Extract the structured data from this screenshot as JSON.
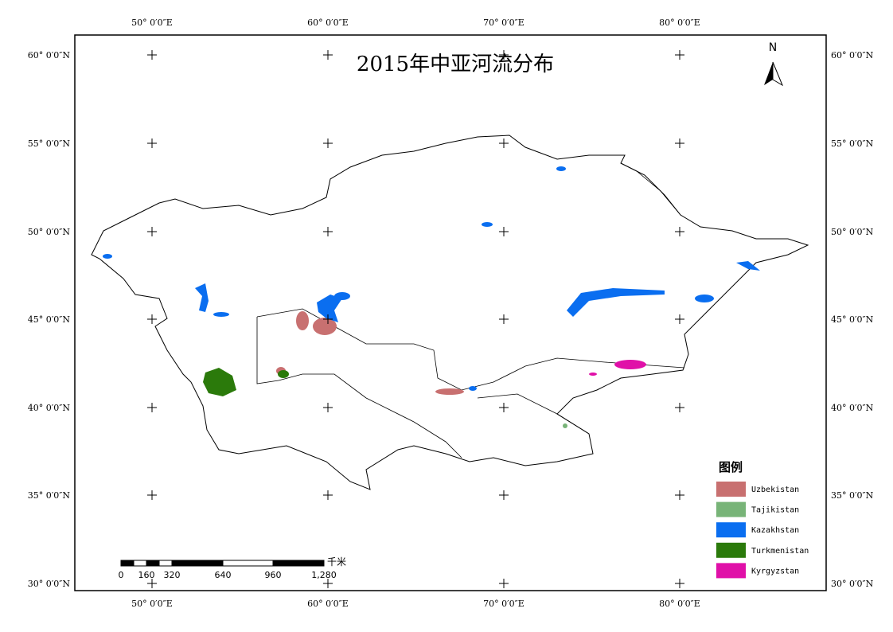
{
  "title": "2015年中亚河流分布",
  "north": "N",
  "graticule": {
    "top": [
      "50° 0′0″E",
      "60° 0′0″E",
      "70° 0′0″E",
      "80° 0′0″E"
    ],
    "bottom": [
      "50° 0′0″E",
      "60° 0′0″E",
      "70° 0′0″E",
      "80° 0′0″E"
    ],
    "left": [
      "60° 0′0″N",
      "55° 0′0″N",
      "50° 0′0″N",
      "45° 0′0″N",
      "40° 0′0″N",
      "35° 0′0″N",
      "30° 0′0″N"
    ],
    "right": [
      "60° 0′0″N",
      "55° 0′0″N",
      "50° 0′0″N",
      "45° 0′0″N",
      "40° 0′0″N",
      "35° 0′0″N",
      "30° 0′0″N"
    ]
  },
  "legend": {
    "title": "图例",
    "items": [
      {
        "name": "Uzbekistan",
        "color": "#c87070"
      },
      {
        "name": "Tajikistan",
        "color": "#78b478"
      },
      {
        "name": "Kazakhstan",
        "color": "#0a6ef0"
      },
      {
        "name": "Turkmenistan",
        "color": "#2b7a0b"
      },
      {
        "name": "Kyrgyzstan",
        "color": "#e010a8"
      }
    ]
  },
  "scale_bar": {
    "unit": "千米",
    "labels": [
      "0",
      "160",
      "320",
      "640",
      "960",
      "1,280"
    ]
  }
}
